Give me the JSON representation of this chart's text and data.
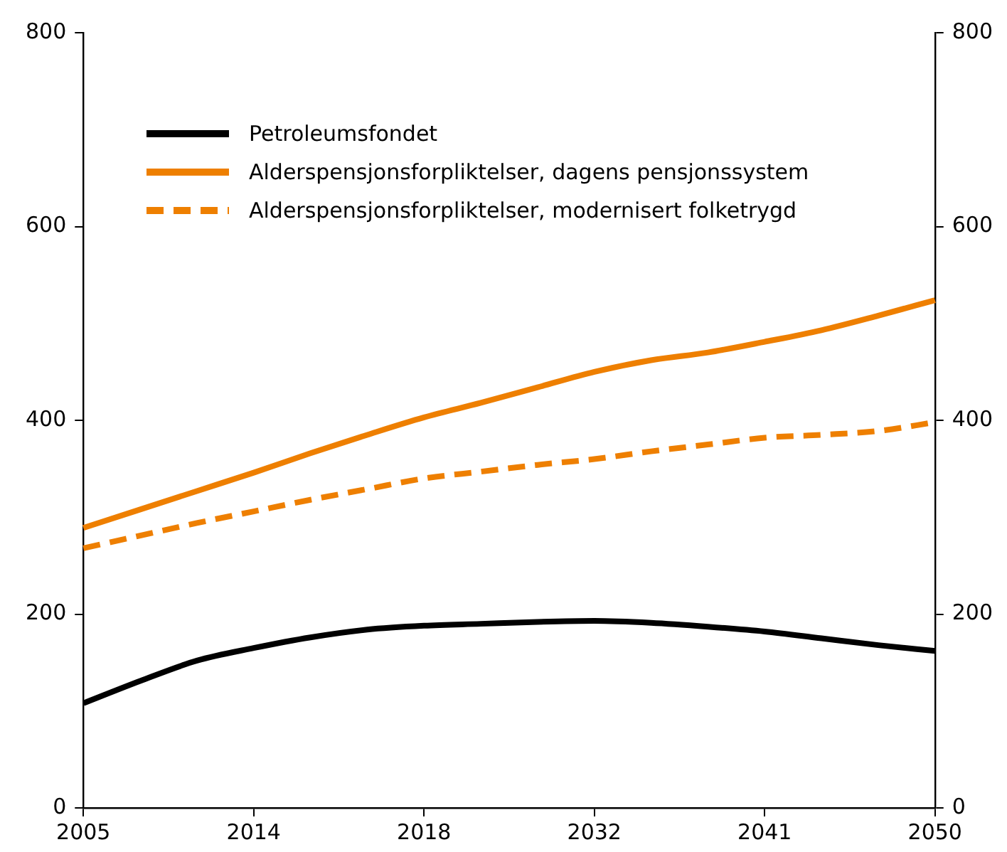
{
  "chart_data": {
    "type": "line",
    "categories": [
      "2005",
      null,
      null,
      "2014",
      null,
      null,
      "2018",
      null,
      null,
      "2032",
      null,
      null,
      "2041",
      null,
      null,
      "2050"
    ],
    "series": [
      {
        "name": "Petroleumsfondet",
        "color": "#000000",
        "values": [
          108,
          131,
          152,
          165,
          176,
          184,
          188,
          190,
          192,
          193,
          191,
          187,
          182,
          175,
          168,
          162
        ]
      },
      {
        "name": "Alderspensjonsforpliktelser, dagens pensjonssystem",
        "color": "#ee7f00",
        "values": [
          289,
          308,
          327,
          346,
          366,
          385,
          403,
          418,
          434,
          450,
          462,
          470,
          481,
          493,
          508,
          524
        ]
      },
      {
        "name": "Alderspensjonsforpliktelser, modernisert folketrygd",
        "color": "#ee7f00",
        "line_style": "dashed",
        "values": [
          268,
          281,
          294,
          306,
          318,
          329,
          340,
          347,
          354,
          360,
          368,
          375,
          382,
          385,
          389,
          398
        ]
      }
    ],
    "ylim": [
      0,
      800
    ],
    "yticks": [
      0,
      200,
      400,
      600,
      800
    ],
    "y2lim": [
      0,
      800
    ],
    "y2ticks": [
      0,
      200,
      400,
      600,
      800
    ],
    "grid": false,
    "legend": "top left",
    "marker": "none"
  }
}
